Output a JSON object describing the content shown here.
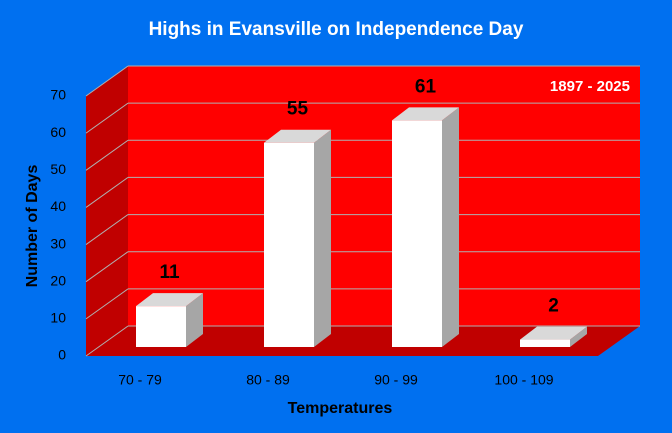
{
  "chart_data": {
    "type": "bar",
    "title": "Highs in Evansville on Independence Day",
    "annotation": "1897 - 2025",
    "categories": [
      "70 - 79",
      "80 - 89",
      "90 - 99",
      "100 - 109"
    ],
    "values": [
      11,
      55,
      61,
      2
    ],
    "color": "#ffffff",
    "x_label": "Temperatures",
    "y_label": "Number of Days",
    "ylim": [
      0,
      70
    ],
    "yticks": [
      0,
      10,
      20,
      30,
      40,
      50,
      60,
      70
    ],
    "grid": true
  }
}
